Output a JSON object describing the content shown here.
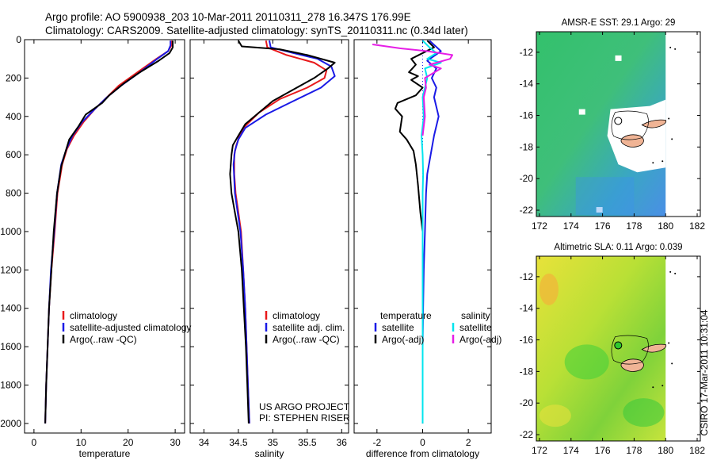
{
  "header": {
    "line1": "Argo profile: AO 5900938_203 10-Mar-2011 20110311_278 16.347S 176.99E",
    "line2": "Climatology: CARS2009. Satellite-adjusted climatology: synTS_20110311.nc (0.34d later)"
  },
  "credit": {
    "line1": "US ARGO PROJECT",
    "line2": "PI: STEPHEN RISER"
  },
  "side_label": "CSIRO 17-Mar-2011 10:31:04",
  "colors": {
    "climatology": "#e8191b",
    "satellite": "#1a1ae6",
    "argo": "#000000",
    "cyan": "#00e5ee",
    "magenta": "#e61ee6"
  },
  "chart_data": [
    {
      "id": "temperature",
      "type": "line",
      "xlabel": "temperature",
      "xlim": [
        -2,
        32
      ],
      "ylim": [
        2050,
        0
      ],
      "x_ticks": [
        0,
        10,
        20,
        30
      ],
      "y_ticks": [
        0,
        200,
        400,
        600,
        800,
        1000,
        1200,
        1400,
        1600,
        1800,
        2000
      ],
      "legend": [
        "climatology",
        "satellite-adjusted climatology",
        "Argo(..raw -QC)"
      ],
      "series": [
        {
          "name": "climatology",
          "color": "#e8191b",
          "points": [
            [
              29.3,
              5
            ],
            [
              29.2,
              30
            ],
            [
              28.5,
              60
            ],
            [
              26,
              100
            ],
            [
              22,
              170
            ],
            [
              18,
              240
            ],
            [
              15.5,
              300
            ],
            [
              13,
              360
            ],
            [
              10.5,
              430
            ],
            [
              8.5,
              500
            ],
            [
              7,
              570
            ],
            [
              6,
              650
            ],
            [
              5,
              800
            ],
            [
              4.4,
              1000
            ],
            [
              3.7,
              1200
            ],
            [
              3.2,
              1400
            ],
            [
              2.9,
              1600
            ],
            [
              2.6,
              1800
            ],
            [
              2.4,
              2000
            ]
          ]
        },
        {
          "name": "satellite-adjusted climatology",
          "color": "#1a1ae6",
          "points": [
            [
              29.0,
              5
            ],
            [
              29.0,
              30
            ],
            [
              28.5,
              60
            ],
            [
              26.2,
              100
            ],
            [
              22.5,
              170
            ],
            [
              18.5,
              240
            ],
            [
              15.5,
              300
            ],
            [
              13,
              360
            ],
            [
              10.2,
              430
            ],
            [
              8.2,
              500
            ],
            [
              6.9,
              570
            ],
            [
              5.8,
              650
            ],
            [
              4.9,
              800
            ],
            [
              4.3,
              1000
            ],
            [
              3.6,
              1200
            ],
            [
              3.2,
              1400
            ],
            [
              2.9,
              1600
            ],
            [
              2.6,
              1800
            ],
            [
              2.4,
              2000
            ]
          ]
        },
        {
          "name": "Argo(..raw -QC)",
          "color": "#000000",
          "points": [
            [
              29.5,
              5
            ],
            [
              29.5,
              40
            ],
            [
              28.8,
              70
            ],
            [
              26.5,
              110
            ],
            [
              22.5,
              170
            ],
            [
              19,
              230
            ],
            [
              16,
              290
            ],
            [
              14.5,
              330
            ],
            [
              11,
              390
            ],
            [
              9.5,
              450
            ],
            [
              7.5,
              520
            ],
            [
              6.5,
              600
            ],
            [
              5.8,
              660
            ],
            [
              4.9,
              800
            ],
            [
              4.2,
              1000
            ],
            [
              3.7,
              1200
            ],
            [
              3.2,
              1400
            ],
            [
              2.9,
              1600
            ],
            [
              2.6,
              1800
            ],
            [
              2.4,
              2000
            ]
          ]
        }
      ]
    },
    {
      "id": "salinity",
      "type": "line",
      "xlabel": "salinity",
      "xlim": [
        33.8,
        36.1
      ],
      "ylim": [
        2050,
        0
      ],
      "x_ticks": [
        34,
        34.5,
        35,
        35.5,
        36
      ],
      "legend": [
        "climatology",
        "satellite adj. clim.",
        "Argo(..raw -QC)"
      ],
      "series": [
        {
          "name": "climatology",
          "color": "#e8191b",
          "points": [
            [
              34.9,
              5
            ],
            [
              34.92,
              40
            ],
            [
              35.2,
              80
            ],
            [
              35.6,
              120
            ],
            [
              35.78,
              160
            ],
            [
              35.75,
              200
            ],
            [
              35.5,
              250
            ],
            [
              35.1,
              310
            ],
            [
              34.8,
              380
            ],
            [
              34.6,
              450
            ],
            [
              34.52,
              500
            ],
            [
              34.47,
              550
            ],
            [
              34.44,
              600
            ],
            [
              34.44,
              700
            ],
            [
              34.46,
              800
            ],
            [
              34.5,
              900
            ],
            [
              34.54,
              1000
            ],
            [
              34.57,
              1200
            ],
            [
              34.6,
              1400
            ],
            [
              34.62,
              1600
            ],
            [
              34.64,
              1800
            ],
            [
              34.66,
              2000
            ]
          ]
        },
        {
          "name": "satellite adj. clim.",
          "color": "#1a1ae6",
          "points": [
            [
              34.95,
              5
            ],
            [
              34.97,
              40
            ],
            [
              35.3,
              70
            ],
            [
              35.65,
              100
            ],
            [
              35.85,
              140
            ],
            [
              35.9,
              190
            ],
            [
              35.7,
              250
            ],
            [
              35.3,
              320
            ],
            [
              34.9,
              390
            ],
            [
              34.6,
              460
            ],
            [
              34.5,
              520
            ],
            [
              34.45,
              580
            ],
            [
              34.43,
              650
            ],
            [
              34.45,
              800
            ],
            [
              34.49,
              900
            ],
            [
              34.53,
              1000
            ],
            [
              34.57,
              1200
            ],
            [
              34.6,
              1400
            ],
            [
              34.62,
              1600
            ],
            [
              34.64,
              1800
            ],
            [
              34.66,
              2000
            ]
          ]
        },
        {
          "name": "Argo(..raw -QC)",
          "color": "#000000",
          "points": [
            [
              34.5,
              5
            ],
            [
              34.55,
              35
            ],
            [
              35.1,
              50
            ],
            [
              35.5,
              80
            ],
            [
              35.9,
              120
            ],
            [
              35.8,
              150
            ],
            [
              35.6,
              200
            ],
            [
              35.3,
              260
            ],
            [
              35.0,
              320
            ],
            [
              34.8,
              380
            ],
            [
              34.6,
              440
            ],
            [
              34.5,
              500
            ],
            [
              34.42,
              550
            ],
            [
              34.4,
              600
            ],
            [
              34.38,
              700
            ],
            [
              34.4,
              800
            ],
            [
              34.45,
              900
            ],
            [
              34.5,
              1000
            ],
            [
              34.55,
              1200
            ],
            [
              34.58,
              1400
            ],
            [
              34.61,
              1600
            ],
            [
              34.63,
              1800
            ],
            [
              34.65,
              2000
            ]
          ]
        }
      ]
    },
    {
      "id": "difference",
      "type": "line",
      "xlabel": "difference from climatology",
      "xlim": [
        -3,
        3
      ],
      "ylim": [
        2050,
        0
      ],
      "x_ticks": [
        -2,
        0,
        2
      ],
      "legend_headers": [
        "temperature",
        "salinity"
      ],
      "legend": [
        "satellite",
        "Argo(-adj)",
        "satellite",
        "Argo(-adj)"
      ],
      "series": [
        {
          "name": "temperature satellite",
          "color": "#1a1ae6",
          "points": [
            [
              0.3,
              5
            ],
            [
              0.8,
              60
            ],
            [
              0.2,
              110
            ],
            [
              0.6,
              150
            ],
            [
              0.4,
              200
            ],
            [
              0.6,
              250
            ],
            [
              0.5,
              300
            ],
            [
              0.7,
              400
            ],
            [
              0.5,
              500
            ],
            [
              0.35,
              600
            ],
            [
              0.2,
              700
            ],
            [
              0.15,
              800
            ],
            [
              0.1,
              1000
            ],
            [
              0.05,
              1200
            ],
            [
              0.02,
              1400
            ],
            [
              0,
              1600
            ],
            [
              0,
              1800
            ],
            [
              0,
              2000
            ]
          ]
        },
        {
          "name": "temperature Argo(-adj)",
          "color": "#000000",
          "points": [
            [
              0.2,
              5
            ],
            [
              0.5,
              40
            ],
            [
              -0.5,
              100
            ],
            [
              -0.3,
              130
            ],
            [
              -0.6,
              170
            ],
            [
              -0.2,
              190
            ],
            [
              -0.5,
              210
            ],
            [
              0,
              250
            ],
            [
              -0.3,
              290
            ],
            [
              -1.1,
              330
            ],
            [
              -1.2,
              360
            ],
            [
              -0.9,
              400
            ],
            [
              -1.0,
              480
            ],
            [
              -0.7,
              520
            ],
            [
              -0.4,
              580
            ],
            [
              -0.3,
              650
            ],
            [
              -0.2,
              760
            ],
            [
              -0.1,
              900
            ],
            [
              0,
              1000
            ],
            [
              0,
              1200
            ],
            [
              0,
              1600
            ],
            [
              0,
              2000
            ]
          ]
        },
        {
          "name": "salinity satellite",
          "color": "#00e5ee",
          "points": [
            [
              0,
              5
            ],
            [
              0.3,
              40
            ],
            [
              0.6,
              70
            ],
            [
              0.2,
              100
            ],
            [
              0.8,
              120
            ],
            [
              0.1,
              150
            ],
            [
              0.2,
              200
            ],
            [
              0,
              300
            ],
            [
              0.05,
              400
            ],
            [
              -0.05,
              500
            ],
            [
              0,
              600
            ],
            [
              0.02,
              700
            ],
            [
              0,
              800
            ],
            [
              0,
              1000
            ],
            [
              0,
              1200
            ],
            [
              0,
              1500
            ],
            [
              0,
              2000
            ]
          ]
        },
        {
          "name": "salinity Argo(-adj)",
          "color": "#e61ee6",
          "points": [
            [
              -2.2,
              25
            ],
            [
              -1.0,
              45
            ],
            [
              0.2,
              60
            ],
            [
              1.3,
              80
            ],
            [
              1.2,
              100
            ],
            [
              0.3,
              130
            ],
            [
              0.8,
              150
            ],
            [
              0.1,
              200
            ],
            [
              0.15,
              250
            ],
            [
              0.05,
              300
            ],
            [
              0.1,
              400
            ],
            [
              0,
              500
            ]
          ]
        }
      ]
    },
    {
      "id": "sst_map",
      "type": "heatmap",
      "title": "AMSR-E SST: 29.1 Argo: 29",
      "x_ticks": [
        172,
        174,
        176,
        178,
        180,
        182
      ],
      "y_ticks": [
        -12,
        -14,
        -16,
        -18,
        -20,
        -22
      ],
      "xlim": [
        171.8,
        182.2
      ],
      "ylim": [
        -22.4,
        -10.7
      ],
      "argo_position": [
        176.99,
        -16.347
      ]
    },
    {
      "id": "sla_map",
      "type": "heatmap",
      "title": "Altimetric SLA: 0.11 Argo: 0.039",
      "x_ticks": [
        172,
        174,
        176,
        178,
        180,
        182
      ],
      "y_ticks": [
        -12,
        -14,
        -16,
        -18,
        -20,
        -22
      ],
      "xlim": [
        171.8,
        182.2
      ],
      "ylim": [
        -22.4,
        -10.7
      ],
      "argo_position": [
        176.99,
        -16.347
      ]
    }
  ]
}
